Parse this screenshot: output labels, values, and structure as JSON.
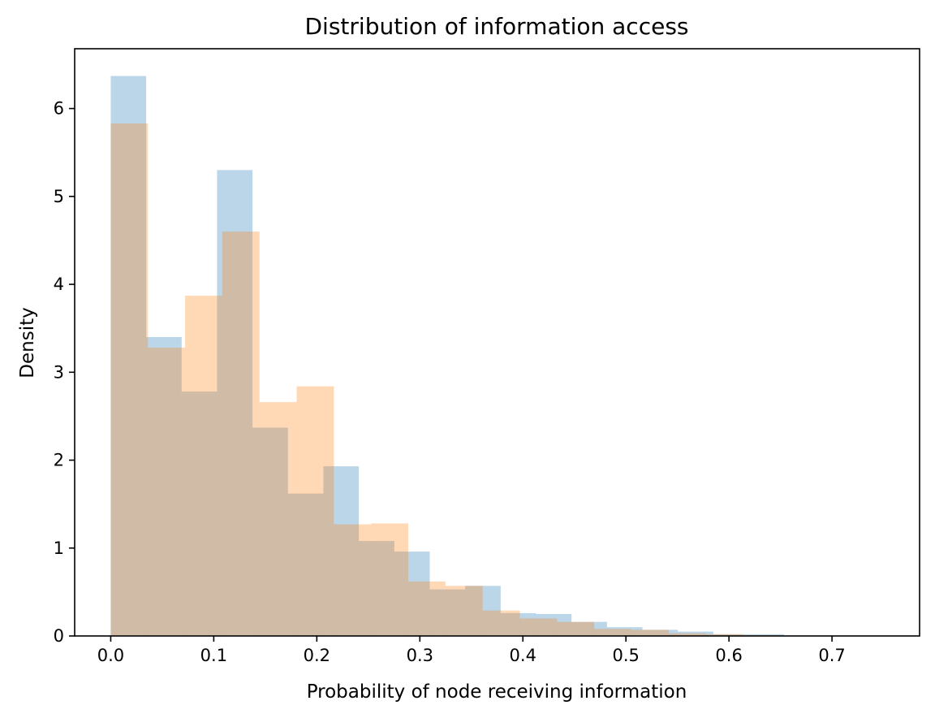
{
  "chart_data": {
    "type": "bar",
    "histogram": true,
    "title": "Distribution of information access",
    "xlabel": "Probability of node receiving information",
    "ylabel": "Density",
    "xlim": [
      -0.035,
      0.785
    ],
    "ylim": [
      0,
      6.68
    ],
    "xticks": [
      0.0,
      0.1,
      0.2,
      0.3,
      0.4,
      0.5,
      0.6,
      0.7
    ],
    "xtick_labels": [
      "0.0",
      "0.1",
      "0.2",
      "0.3",
      "0.4",
      "0.5",
      "0.6",
      "0.7"
    ],
    "yticks": [
      0,
      1,
      2,
      3,
      4,
      5,
      6
    ],
    "ytick_labels": [
      "0",
      "1",
      "2",
      "3",
      "4",
      "5",
      "6"
    ],
    "grid": false,
    "legend": "none",
    "series": [
      {
        "color": "#1f77b4",
        "opacity": 0.3,
        "bin_edges": [
          0.0,
          0.0344,
          0.0688,
          0.1032,
          0.1376,
          0.172,
          0.2064,
          0.2408,
          0.2752,
          0.3096,
          0.344,
          0.3784,
          0.4128,
          0.4472,
          0.4816,
          0.516,
          0.5504,
          0.5848,
          0.6192,
          0.6536,
          0.688
        ],
        "values": [
          6.37,
          3.4,
          2.78,
          5.3,
          2.37,
          1.62,
          1.93,
          1.08,
          0.96,
          0.53,
          0.57,
          0.26,
          0.25,
          0.16,
          0.1,
          0.07,
          0.05,
          0.02,
          0.02,
          0.0
        ]
      },
      {
        "color": "#ff7f0e",
        "opacity": 0.3,
        "bin_edges": [
          0.0,
          0.0361,
          0.0722,
          0.1083,
          0.1444,
          0.1805,
          0.2166,
          0.2527,
          0.2888,
          0.3249,
          0.361,
          0.3971,
          0.4332,
          0.4693,
          0.5054,
          0.5415,
          0.5776,
          0.6137,
          0.6498,
          0.6859,
          0.722
        ],
        "values": [
          5.83,
          3.28,
          3.87,
          4.6,
          2.66,
          2.84,
          1.27,
          1.28,
          0.62,
          0.57,
          0.29,
          0.2,
          0.16,
          0.08,
          0.07,
          0.03,
          0.02,
          0.01,
          0.0,
          0.0
        ]
      }
    ]
  }
}
